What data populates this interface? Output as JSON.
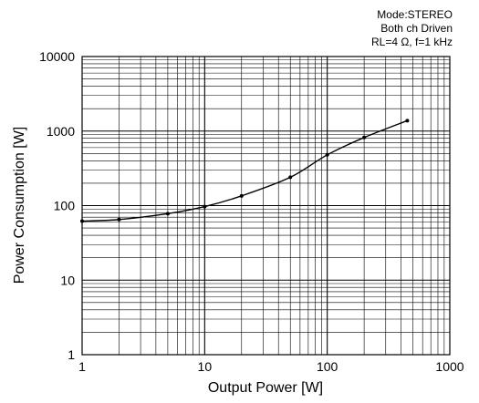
{
  "chart_data": {
    "type": "line",
    "x_scale": "log",
    "y_scale": "log",
    "xlim": [
      1,
      1000
    ],
    "ylim": [
      1,
      10000
    ],
    "xlabel": "Output Power [W]",
    "ylabel": "Power Consumption [W]",
    "x_ticks": [
      "1",
      "10",
      "100",
      "1000"
    ],
    "y_ticks": [
      "1",
      "10",
      "100",
      "1000",
      "10000"
    ],
    "annotation_lines": [
      "Mode:STEREO",
      "Both ch Driven",
      "RL=4 Ω, f=1 kHz"
    ],
    "grid": true,
    "line_color": "#000000",
    "series": [
      {
        "x": [
          1,
          2,
          5,
          10,
          20,
          50,
          100,
          200,
          450
        ],
        "y": [
          62,
          65,
          78,
          97,
          135,
          240,
          480,
          820,
          1380
        ]
      }
    ]
  }
}
